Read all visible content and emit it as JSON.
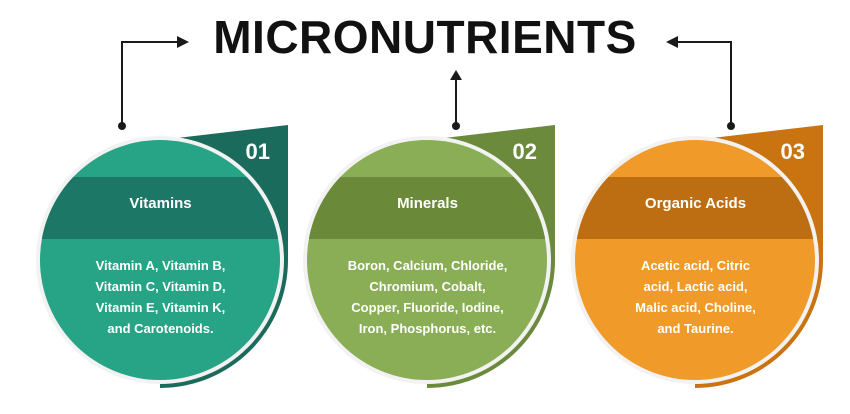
{
  "title": "MICRONUTRIENTS",
  "cards": [
    {
      "number": "01",
      "title": "Vitamins",
      "lines": [
        "Vitamin A, Vitamin B,",
        "Vitamin C, Vitamin D,",
        "Vitamin E, Vitamin K,",
        "and Carotenoids."
      ],
      "colors": {
        "tab": "#1a6b5c",
        "dark": "#1d7766",
        "light": "#27a386"
      }
    },
    {
      "number": "02",
      "title": "Minerals",
      "lines": [
        "Boron, Calcium, Chloride,",
        "Chromium, Cobalt,",
        "Copper, Fluoride, Iodine,",
        "Iron, Phosphorus, etc."
      ],
      "colors": {
        "tab": "#6b8a3c",
        "dark": "#6a8a3a",
        "light": "#8aae56"
      }
    },
    {
      "number": "03",
      "title": "Organic Acids",
      "lines": [
        "Acetic acid, Citric",
        "acid, Lactic acid,",
        "Malic acid, Choline,",
        "and Taurine."
      ],
      "colors": {
        "tab": "#c97410",
        "dark": "#bd6e12",
        "light": "#f09a2a"
      }
    }
  ]
}
